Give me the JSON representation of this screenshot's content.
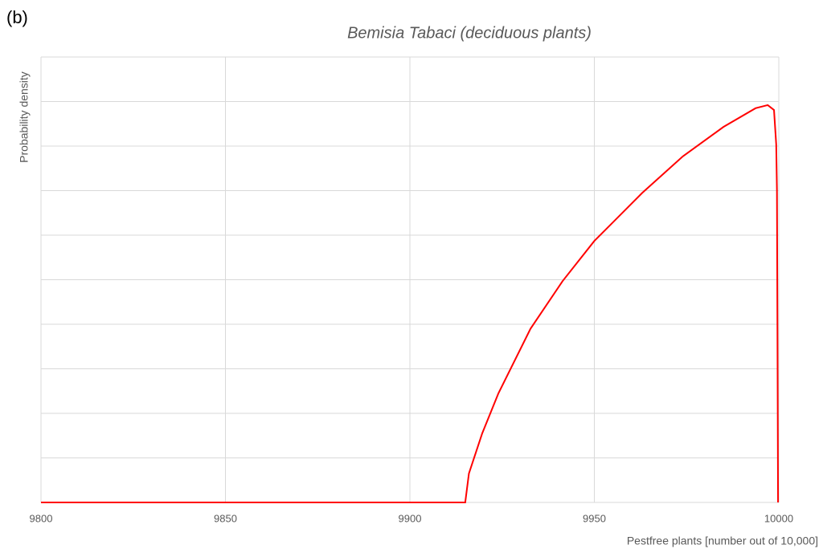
{
  "chart_data": {
    "type": "line",
    "panel_label": "(b)",
    "title": "Bemisia Tabaci (deciduous plants)",
    "x_label": "Pestfree plants [number out of 10,000]",
    "y_label": "Probability density",
    "x": [
      9800,
      9915,
      9916,
      9919.6,
      9924,
      9932.7,
      9941.4,
      9950,
      9963,
      9974,
      9985,
      9993.7,
      9997,
      9998.7,
      9999.3,
      9999.5,
      9999.8
    ],
    "series": [
      {
        "name": "Bemisia Tabaci",
        "color": "#ff0000",
        "values": [
          0,
          0,
          0.65,
          1.55,
          2.45,
          3.9,
          4.97,
          5.87,
          6.95,
          7.77,
          8.43,
          8.85,
          8.92,
          8.81,
          8.04,
          7.0,
          0
        ]
      }
    ],
    "xlim": [
      9800,
      10000
    ],
    "xticks": [
      9800,
      9850,
      9900,
      9950,
      10000
    ],
    "ylim": [
      0,
      10
    ],
    "yticks": [
      0,
      1,
      2,
      3,
      4,
      5,
      6,
      7,
      8,
      9,
      10
    ],
    "ytick_labels": false,
    "grid": true
  }
}
